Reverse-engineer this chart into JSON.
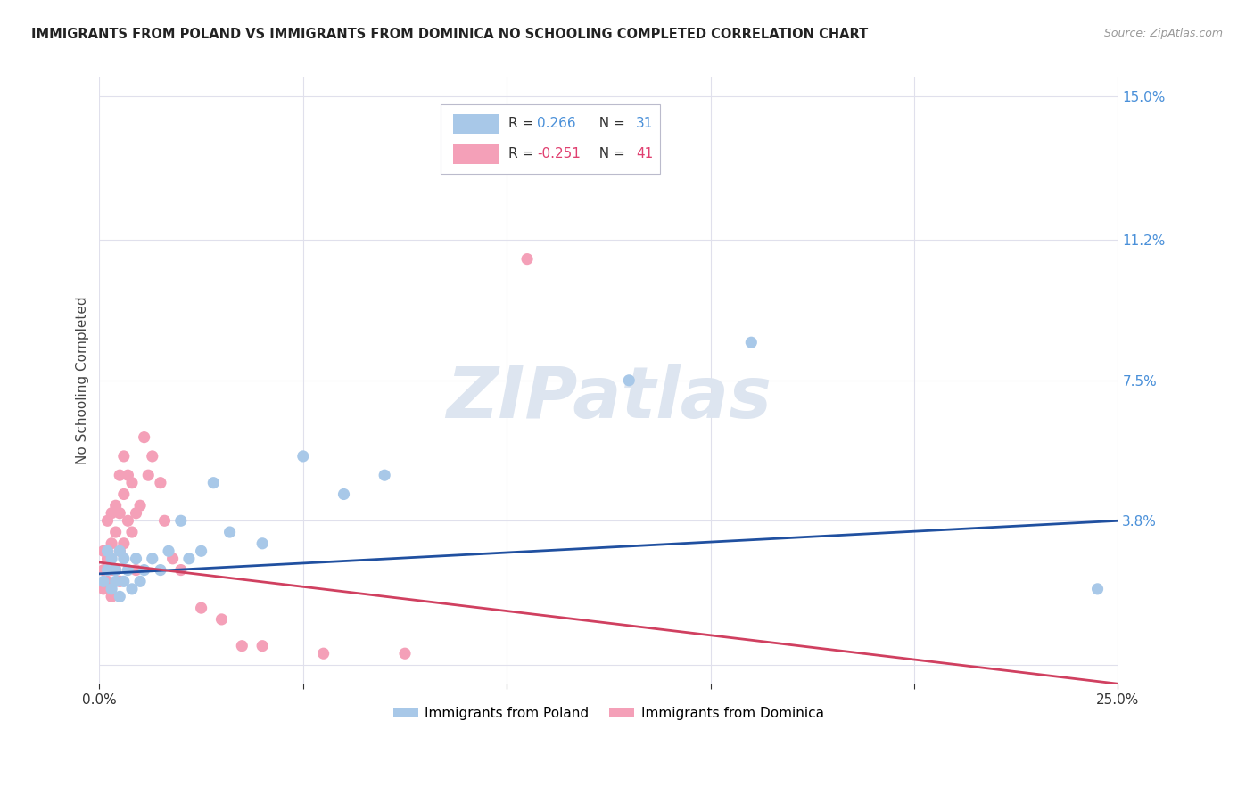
{
  "title": "IMMIGRANTS FROM POLAND VS IMMIGRANTS FROM DOMINICA NO SCHOOLING COMPLETED CORRELATION CHART",
  "source": "Source: ZipAtlas.com",
  "ylabel": "No Schooling Completed",
  "xlim": [
    0.0,
    0.25
  ],
  "ylim": [
    -0.005,
    0.155
  ],
  "xticks": [
    0.0,
    0.05,
    0.1,
    0.15,
    0.2,
    0.25
  ],
  "xticklabels": [
    "0.0%",
    "",
    "",
    "",
    "",
    "25.0%"
  ],
  "right_yticks": [
    0.0,
    0.038,
    0.075,
    0.112,
    0.15
  ],
  "right_yticklabels": [
    "",
    "3.8%",
    "7.5%",
    "11.2%",
    "15.0%"
  ],
  "poland_color": "#a8c8e8",
  "dominica_color": "#f4a0b8",
  "poland_line_color": "#2050a0",
  "dominica_line_color": "#d04060",
  "watermark_text": "ZIPatlas",
  "watermark_color": "#dde5f0",
  "background_color": "#ffffff",
  "grid_color": "#e0e0ec",
  "legend_R_color_poland": "#4a90d9",
  "legend_R_color_dominica": "#e04070",
  "legend_N_color": "#4a90d9",
  "legend_N_color_dominica": "#e04070",
  "poland_x": [
    0.001,
    0.002,
    0.002,
    0.003,
    0.003,
    0.004,
    0.004,
    0.005,
    0.005,
    0.006,
    0.006,
    0.007,
    0.008,
    0.009,
    0.01,
    0.011,
    0.013,
    0.015,
    0.017,
    0.02,
    0.022,
    0.025,
    0.028,
    0.032,
    0.04,
    0.05,
    0.06,
    0.07,
    0.13,
    0.16,
    0.245
  ],
  "poland_y": [
    0.022,
    0.025,
    0.03,
    0.02,
    0.028,
    0.025,
    0.022,
    0.03,
    0.018,
    0.028,
    0.022,
    0.025,
    0.02,
    0.028,
    0.022,
    0.025,
    0.028,
    0.025,
    0.03,
    0.038,
    0.028,
    0.03,
    0.048,
    0.035,
    0.032,
    0.055,
    0.045,
    0.05,
    0.075,
    0.085,
    0.02
  ],
  "dominica_x": [
    0.001,
    0.001,
    0.001,
    0.002,
    0.002,
    0.002,
    0.003,
    0.003,
    0.003,
    0.003,
    0.004,
    0.004,
    0.004,
    0.005,
    0.005,
    0.005,
    0.005,
    0.006,
    0.006,
    0.006,
    0.007,
    0.007,
    0.008,
    0.008,
    0.009,
    0.009,
    0.01,
    0.011,
    0.012,
    0.013,
    0.015,
    0.016,
    0.018,
    0.02,
    0.025,
    0.03,
    0.035,
    0.04,
    0.055,
    0.075,
    0.105
  ],
  "dominica_y": [
    0.03,
    0.025,
    0.02,
    0.038,
    0.028,
    0.022,
    0.04,
    0.032,
    0.025,
    0.018,
    0.042,
    0.035,
    0.025,
    0.05,
    0.04,
    0.03,
    0.022,
    0.055,
    0.045,
    0.032,
    0.05,
    0.038,
    0.048,
    0.035,
    0.04,
    0.025,
    0.042,
    0.06,
    0.05,
    0.055,
    0.048,
    0.038,
    0.028,
    0.025,
    0.015,
    0.012,
    0.005,
    0.005,
    0.003,
    0.003,
    0.107
  ],
  "poland_line_start_y": 0.024,
  "poland_line_end_y": 0.038,
  "dominica_line_start_y": 0.027,
  "dominica_line_end_y": -0.005
}
